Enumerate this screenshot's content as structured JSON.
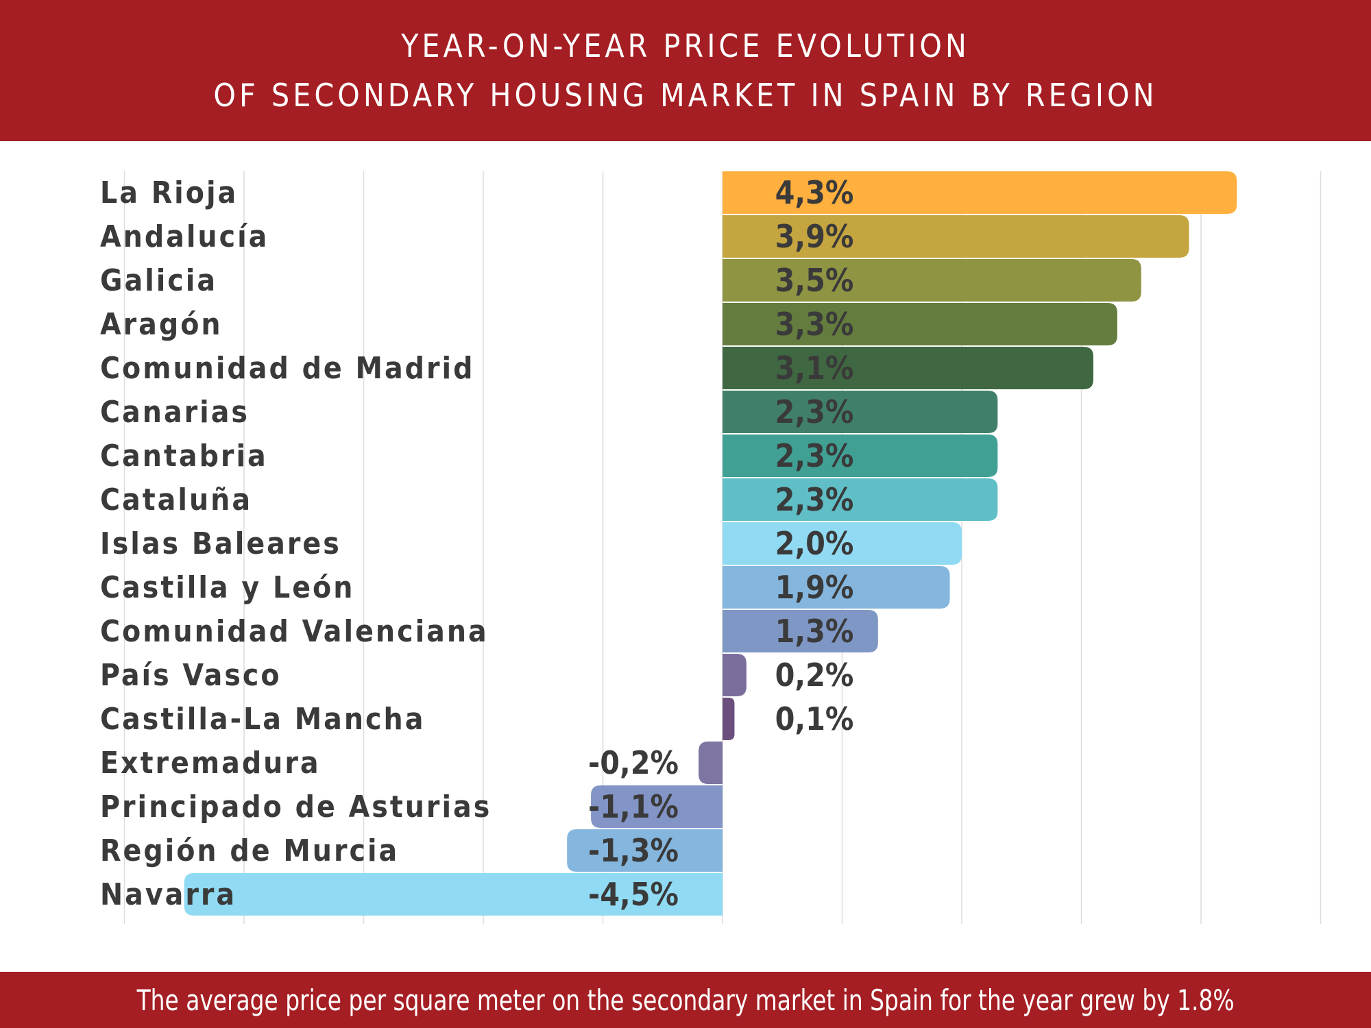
{
  "chart_data": {
    "type": "bar",
    "orientation": "horizontal",
    "title_lines": [
      "YEAR-ON-YEAR PRICE EVOLUTION",
      "OF SECONDARY HOUSING MARKET IN SPAIN BY REGION"
    ],
    "footer_note": "The average price per square meter on the secondary market in Spain for the year grew by 1.8%",
    "categories": [
      "La Rioja",
      "Andalucía",
      "Galicia",
      "Aragón",
      "Comunidad de Madrid",
      "Canarias",
      "Cantabria",
      "Cataluña",
      "Islas Baleares",
      "Castilla y León",
      "Comunidad Valenciana",
      "País Vasco",
      "Castilla-La Mancha",
      "Extremadura",
      "Principado de Asturias",
      "Región de Murcia",
      "Navarra"
    ],
    "values": [
      4.3,
      3.9,
      3.5,
      3.3,
      3.1,
      2.3,
      2.3,
      2.3,
      2.0,
      1.9,
      1.3,
      0.2,
      0.1,
      -0.2,
      -1.1,
      -1.3,
      -4.5
    ],
    "value_labels": [
      "4,3%",
      "3,9%",
      "3,5%",
      "3,3%",
      "3,1%",
      "2,3%",
      "2,3%",
      "2,3%",
      "2,0%",
      "1,9%",
      "1,3%",
      "0,2%",
      "0,1%",
      "-0,2%",
      "-1,1%",
      "-1,3%",
      "-4,5%"
    ],
    "colors": [
      "#ffb03e",
      "#c5a540",
      "#8f9443",
      "#647c3e",
      "#3f6741",
      "#40806a",
      "#41a094",
      "#60bec6",
      "#90dbf3",
      "#84b6de",
      "#7e97c4",
      "#7b6e9c",
      "#6b4e7c",
      "#7e75a2",
      "#8295c6",
      "#84b6de",
      "#90dbf3"
    ],
    "xlim": [
      -5,
      5
    ],
    "grid": true,
    "legend": "none"
  }
}
